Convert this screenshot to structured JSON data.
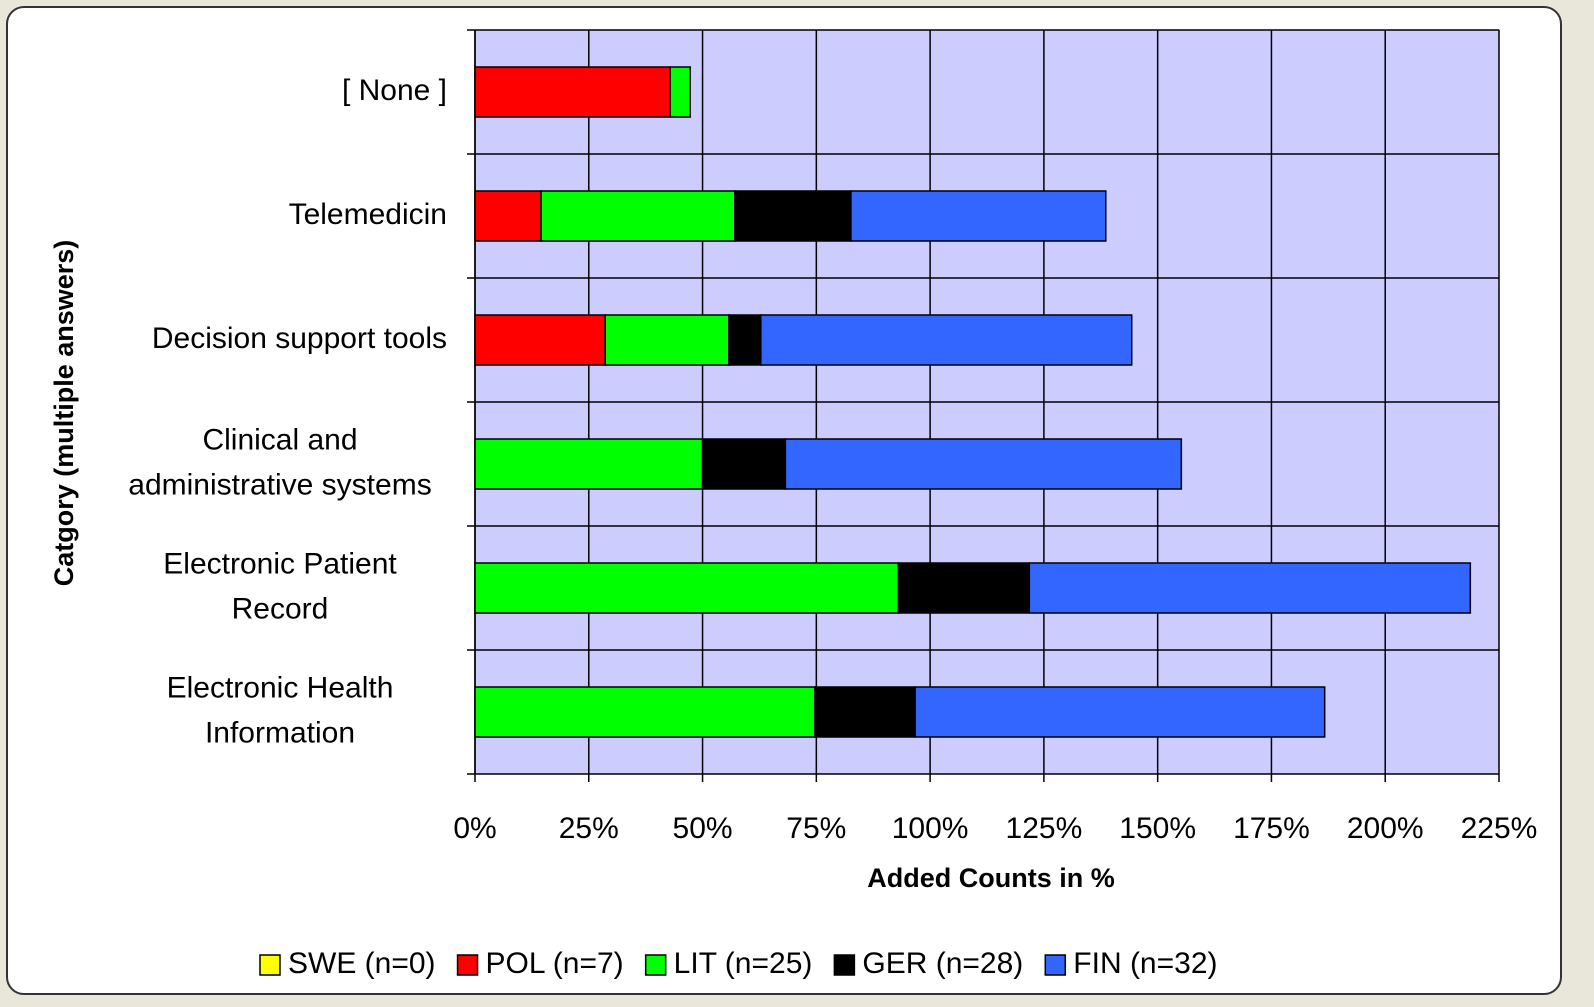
{
  "chart_data": {
    "type": "stacked-barh",
    "x_label": "Added Counts in %",
    "y_label": "Catgory (multiple answers)",
    "categories": [
      "[ None ]",
      "Telemedicin",
      "Decision support tools",
      "Clinical and\nadministrative systems",
      "Electronic Patient\nRecord",
      "Electronic Health\nInformation"
    ],
    "series": [
      {
        "name": "SWE (n=0)",
        "color": "#ffff00",
        "values": [
          0,
          0,
          0,
          0,
          0,
          0
        ]
      },
      {
        "name": "POL (n=7)",
        "color": "#ff0000",
        "values": [
          42.9,
          14.5,
          28.6,
          0,
          0,
          0
        ]
      },
      {
        "name": "LIT (n=25)",
        "color": "#00ff00",
        "values": [
          4.4,
          42.6,
          27.2,
          50,
          93,
          74.7
        ]
      },
      {
        "name": "GER (n=28)",
        "color": "#000000",
        "values": [
          0,
          25.5,
          7,
          18.2,
          28.8,
          22
        ]
      },
      {
        "name": "FIN (n=32)",
        "color": "#3366ff",
        "values": [
          0,
          56,
          81.5,
          87,
          96.9,
          90
        ]
      }
    ],
    "xlim": [
      0,
      225
    ],
    "xticks": [
      {
        "value": 0,
        "label": "0%"
      },
      {
        "value": 25,
        "label": "25%"
      },
      {
        "value": 50,
        "label": "50%"
      },
      {
        "value": 75,
        "label": "75%"
      },
      {
        "value": 100,
        "label": "100%"
      },
      {
        "value": 125,
        "label": "125%"
      },
      {
        "value": 150,
        "label": "150%"
      },
      {
        "value": 175,
        "label": "175%"
      },
      {
        "value": 200,
        "label": "200%"
      },
      {
        "value": 225,
        "label": "225%"
      }
    ],
    "grid": true,
    "plot_background": "#ccccff",
    "legend": "bottom"
  }
}
